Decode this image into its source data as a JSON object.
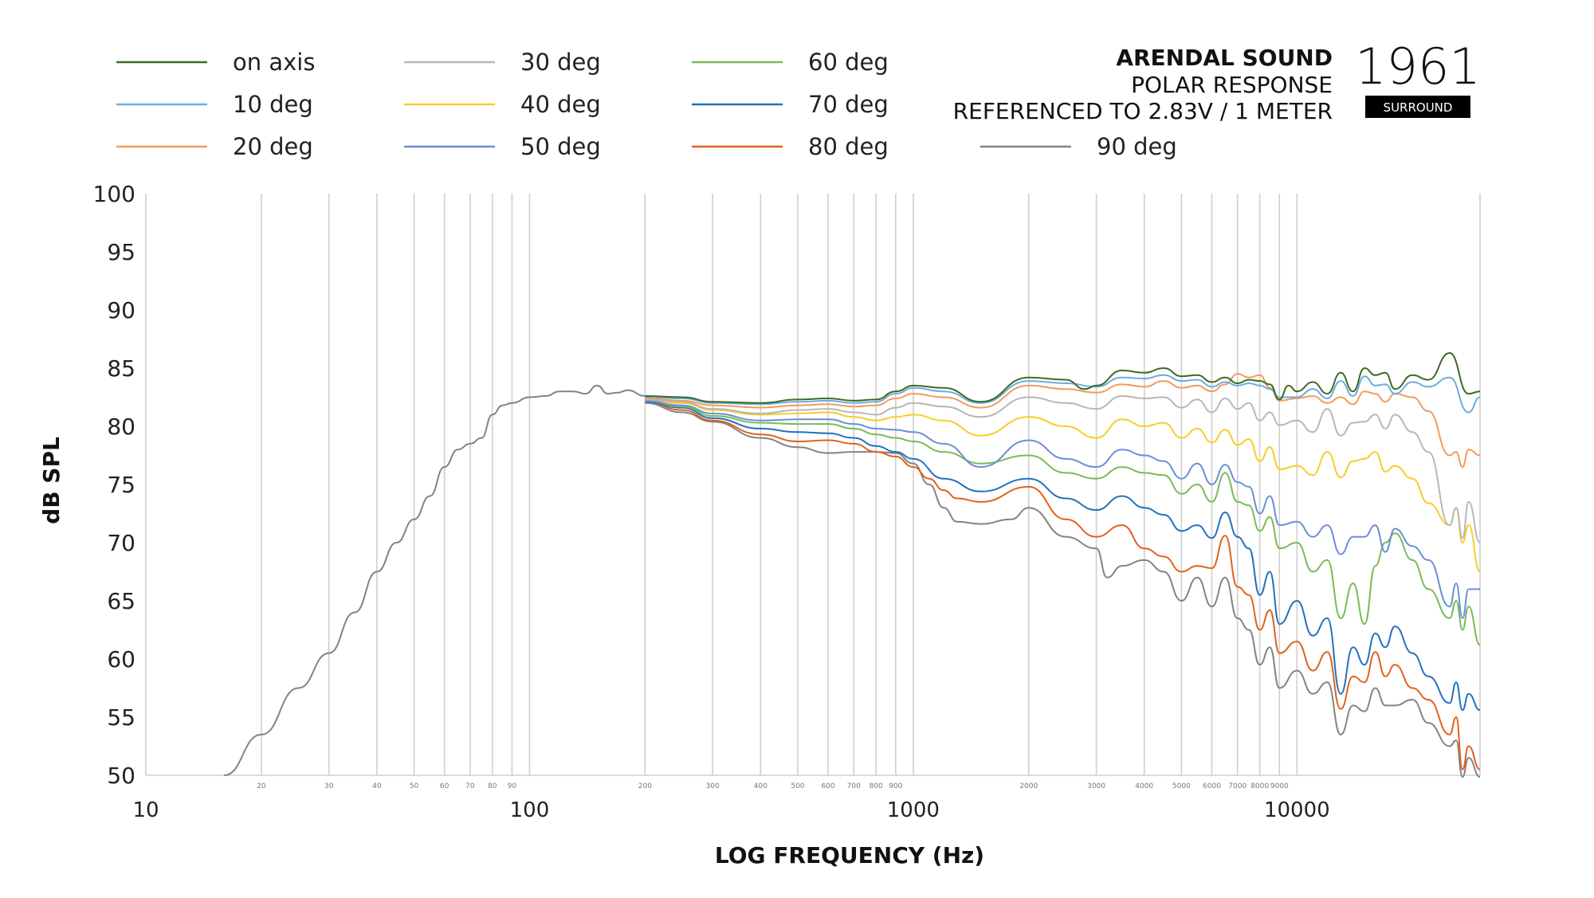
{
  "header": {
    "brand": "ARENDAL SOUND",
    "subtitle": "POLAR RESPONSE",
    "reference": "REFERENCED TO 2.83V / 1 METER",
    "logo_number": "1961",
    "logo_badge": "SURROUND"
  },
  "chart_data": {
    "type": "line",
    "xscale": "log",
    "xlim": [
      10,
      30000
    ],
    "ylim": [
      50,
      100
    ],
    "xlabel": "LOG FREQUENCY (Hz)",
    "ylabel": "dB SPL",
    "grid": "vertical",
    "legend_position": "top",
    "y_ticks": [
      100,
      95,
      90,
      85,
      80,
      75,
      70,
      65,
      60,
      55,
      50
    ],
    "x_major_ticks": [
      {
        "v": 10,
        "label": "10"
      },
      {
        "v": 100,
        "label": "100"
      },
      {
        "v": 1000,
        "label": "1000"
      },
      {
        "v": 10000,
        "label": "10000"
      }
    ],
    "x_minor_ticks": [
      {
        "v": 20,
        "label": "20"
      },
      {
        "v": 30,
        "label": "30"
      },
      {
        "v": 40,
        "label": "40"
      },
      {
        "v": 50,
        "label": "50"
      },
      {
        "v": 60,
        "label": "60"
      },
      {
        "v": 70,
        "label": "70"
      },
      {
        "v": 80,
        "label": "80"
      },
      {
        "v": 90,
        "label": "90"
      },
      {
        "v": 200,
        "label": "200"
      },
      {
        "v": 300,
        "label": "300"
      },
      {
        "v": 400,
        "label": "400"
      },
      {
        "v": 500,
        "label": "500"
      },
      {
        "v": 600,
        "label": "600"
      },
      {
        "v": 700,
        "label": "700"
      },
      {
        "v": 800,
        "label": "800"
      },
      {
        "v": 900,
        "label": "900"
      },
      {
        "v": 2000,
        "label": "2000"
      },
      {
        "v": 3000,
        "label": "3000"
      },
      {
        "v": 4000,
        "label": "4000"
      },
      {
        "v": 5000,
        "label": "5000"
      },
      {
        "v": 6000,
        "label": "6000"
      },
      {
        "v": 7000,
        "label": "7000"
      },
      {
        "v": 8000,
        "label": "8000"
      },
      {
        "v": 9000,
        "label": "9000"
      }
    ],
    "gridline_freqs": [
      10,
      20,
      30,
      40,
      50,
      60,
      70,
      80,
      90,
      100,
      200,
      300,
      400,
      500,
      600,
      700,
      800,
      900,
      1000,
      2000,
      3000,
      4000,
      5000,
      6000,
      7000,
      8000,
      9000,
      10000,
      30000
    ],
    "base_curve": {
      "x": [
        16,
        20,
        25,
        30,
        35,
        40,
        45,
        50,
        55,
        60,
        65,
        70,
        75,
        80,
        85,
        90,
        100,
        110,
        120,
        130,
        140,
        150,
        160,
        170,
        180,
        200
      ],
      "y": [
        50,
        53.5,
        57.5,
        60.5,
        64,
        67.5,
        70,
        72,
        74,
        76.5,
        78,
        78.5,
        79,
        81,
        81.8,
        82,
        82.5,
        82.6,
        83,
        83,
        82.8,
        83.5,
        82.8,
        82.9,
        83.1,
        82.6
      ]
    },
    "series": [
      {
        "name": "on axis",
        "color": "#3e6a22",
        "end_db": 83,
        "x": [
          200,
          250,
          300,
          400,
          500,
          600,
          700,
          800,
          900,
          1000,
          1200,
          1500,
          2000,
          2500,
          2800,
          3000,
          3500,
          4000,
          4500,
          5000,
          5500,
          6000,
          6500,
          7000,
          7500,
          8000,
          8500,
          9000,
          9500,
          10000,
          11000,
          12000,
          13000,
          14000,
          15000,
          16000,
          17000,
          18000,
          20000,
          22000,
          25000,
          28000,
          30000
        ],
        "y": [
          82.6,
          82.5,
          82.1,
          82,
          82.3,
          82.4,
          82.2,
          82.3,
          83,
          83.5,
          83.3,
          82.1,
          84.2,
          84,
          83.2,
          83.5,
          84.8,
          84.6,
          85,
          84.3,
          84.4,
          83.8,
          84.2,
          83.7,
          84,
          83.9,
          83.6,
          82.3,
          83.5,
          83,
          83.8,
          82.8,
          84.6,
          83,
          85,
          84.4,
          84.6,
          83.2,
          84.4,
          84,
          86.3,
          82.8,
          83
        ]
      },
      {
        "name": "10 deg",
        "color": "#6aaee0",
        "end_db": 82.5,
        "x": [
          200,
          250,
          300,
          400,
          500,
          600,
          700,
          800,
          900,
          1000,
          1200,
          1500,
          2000,
          2500,
          3000,
          3500,
          4000,
          4500,
          5000,
          5500,
          6000,
          6500,
          7000,
          7500,
          8000,
          8500,
          9000,
          10000,
          11000,
          12000,
          13000,
          14000,
          15000,
          16000,
          17000,
          18000,
          20000,
          22000,
          25000,
          28000,
          30000
        ],
        "y": [
          82.5,
          82.4,
          82,
          81.9,
          82.1,
          82.2,
          82,
          82.1,
          82.8,
          83.3,
          83,
          82,
          83.9,
          83.7,
          83.4,
          84.2,
          84.1,
          84.4,
          83.9,
          84,
          83.4,
          83.8,
          83.5,
          83.7,
          83.5,
          83.2,
          82.5,
          82.5,
          83.2,
          82.4,
          83.9,
          82.6,
          84.3,
          83.5,
          83.6,
          82.8,
          83.8,
          83.4,
          84.2,
          81.2,
          82.5
        ]
      },
      {
        "name": "20 deg",
        "color": "#f39a5c",
        "end_db": 77.5,
        "x": [
          200,
          250,
          300,
          400,
          500,
          600,
          700,
          800,
          900,
          1000,
          1200,
          1500,
          2000,
          2500,
          3000,
          3500,
          4000,
          4500,
          5000,
          5500,
          6000,
          6500,
          7000,
          7500,
          8000,
          8500,
          9000,
          10000,
          11000,
          12000,
          13000,
          14000,
          15000,
          16000,
          17000,
          18000,
          20000,
          22000,
          25000,
          26000,
          27000,
          28000,
          30000
        ],
        "y": [
          82.4,
          82.2,
          81.8,
          81.6,
          81.8,
          81.9,
          81.7,
          81.8,
          82.4,
          82.8,
          82.5,
          81.6,
          83.5,
          83.2,
          82.9,
          83.6,
          83.4,
          83.9,
          83.3,
          83.5,
          83,
          83.6,
          84.5,
          84.2,
          84.4,
          83.3,
          82.2,
          82.4,
          82.6,
          82,
          82.5,
          81.9,
          83,
          82.8,
          82.1,
          82.8,
          82.5,
          81.3,
          77.5,
          77.8,
          76.5,
          78,
          77.5
        ]
      },
      {
        "name": "30 deg",
        "color": "#b7b7b7",
        "end_db": 70,
        "x": [
          200,
          250,
          300,
          400,
          500,
          600,
          700,
          800,
          900,
          1000,
          1200,
          1500,
          2000,
          2500,
          3000,
          3500,
          4000,
          4500,
          5000,
          5500,
          6000,
          6500,
          7000,
          7500,
          8000,
          8500,
          9000,
          10000,
          11000,
          12000,
          13000,
          14000,
          15000,
          16000,
          17000,
          18000,
          20000,
          22000,
          25000,
          26000,
          27000,
          28000,
          30000
        ],
        "y": [
          82.3,
          82.1,
          81.5,
          81.1,
          81.4,
          81.5,
          81.2,
          81,
          81.6,
          82,
          81.7,
          80.8,
          82.5,
          82,
          81.5,
          82.6,
          82.4,
          82.5,
          81.6,
          82.3,
          81.2,
          82.4,
          81.5,
          82,
          80.5,
          81.2,
          80.1,
          80.5,
          79.5,
          81.5,
          79.2,
          80.3,
          80.4,
          81,
          79.8,
          81,
          79.5,
          77.8,
          71.5,
          73,
          70.4,
          73.5,
          70
        ]
      },
      {
        "name": "40 deg",
        "color": "#f8cd26",
        "end_db": 67.5,
        "x": [
          200,
          250,
          300,
          400,
          500,
          600,
          700,
          800,
          900,
          1000,
          1200,
          1500,
          2000,
          2500,
          3000,
          3500,
          4000,
          4500,
          5000,
          5500,
          6000,
          6500,
          7000,
          7500,
          8000,
          8500,
          9000,
          10000,
          11000,
          12000,
          13000,
          14000,
          15000,
          16000,
          17000,
          18000,
          20000,
          22000,
          25000,
          26000,
          27000,
          28000,
          30000
        ],
        "y": [
          82.3,
          82,
          81.4,
          81,
          81.1,
          81.2,
          80.8,
          80.5,
          80.8,
          81,
          80.5,
          79.2,
          80.8,
          80,
          79,
          80.6,
          80,
          80.3,
          79,
          79.8,
          78.6,
          79.7,
          78.4,
          78.9,
          77,
          78.2,
          76.3,
          76.6,
          75.8,
          77.8,
          75.6,
          77,
          77.2,
          77.8,
          76.1,
          76.6,
          75.5,
          73.4,
          71.5,
          73,
          70,
          71.5,
          67.5
        ]
      },
      {
        "name": "50 deg",
        "color": "#6b8fd6",
        "end_db": 66,
        "x": [
          200,
          250,
          300,
          400,
          500,
          600,
          700,
          800,
          900,
          1000,
          1200,
          1500,
          2000,
          2500,
          3000,
          3500,
          4000,
          4500,
          5000,
          5500,
          6000,
          6500,
          7000,
          7500,
          8000,
          8500,
          9000,
          10000,
          11000,
          12000,
          13000,
          14000,
          15000,
          16000,
          17000,
          18000,
          20000,
          22000,
          25000,
          26000,
          27000,
          28000,
          30000
        ],
        "y": [
          82.2,
          81.8,
          81.1,
          80.5,
          80.6,
          80.6,
          80.2,
          79.8,
          79.7,
          79.5,
          78.5,
          76.5,
          78.8,
          77.2,
          76.5,
          78,
          77.5,
          77,
          75.5,
          76.8,
          75,
          76.7,
          75.2,
          74.8,
          72.5,
          74,
          71.5,
          71.8,
          70.5,
          71.5,
          69,
          70.5,
          70.5,
          71.5,
          69.2,
          71.2,
          69.7,
          68.5,
          64.5,
          66.5,
          63.5,
          66,
          66
        ]
      },
      {
        "name": "60 deg",
        "color": "#79bb56",
        "end_db": 61.2,
        "x": [
          200,
          250,
          300,
          400,
          500,
          600,
          700,
          800,
          900,
          1000,
          1200,
          1500,
          2000,
          2500,
          3000,
          3500,
          4000,
          4500,
          5000,
          5500,
          6000,
          6500,
          7000,
          7500,
          8000,
          8500,
          9000,
          10000,
          11000,
          12000,
          13000,
          14000,
          15000,
          16000,
          17000,
          18000,
          20000,
          22000,
          25000,
          26000,
          27000,
          28000,
          30000
        ],
        "y": [
          82.2,
          81.7,
          80.9,
          80.3,
          80.2,
          80.2,
          79.8,
          79.3,
          79,
          78.7,
          77.8,
          76.8,
          77.5,
          76,
          75.5,
          76.5,
          76,
          75.8,
          74.2,
          75,
          73.5,
          76,
          73.5,
          73.2,
          71,
          72.2,
          69.5,
          70,
          67.5,
          68.5,
          63.5,
          66.5,
          63,
          68,
          70,
          70.8,
          68.5,
          66,
          63.5,
          65,
          62.5,
          64.5,
          61.2
        ]
      },
      {
        "name": "70 deg",
        "color": "#2371be",
        "end_db": 55.6,
        "x": [
          200,
          250,
          300,
          400,
          500,
          600,
          700,
          800,
          900,
          1000,
          1200,
          1500,
          2000,
          2500,
          3000,
          3500,
          4000,
          4500,
          5000,
          5500,
          6000,
          6500,
          7000,
          7500,
          8000,
          8500,
          9000,
          10000,
          11000,
          12000,
          13000,
          14000,
          15000,
          16000,
          17000,
          18000,
          20000,
          22000,
          25000,
          26000,
          27000,
          28000,
          30000
        ],
        "y": [
          82.1,
          81.6,
          80.7,
          79.8,
          79.5,
          79.4,
          79,
          78.3,
          77.8,
          77.2,
          75.5,
          74.4,
          75.5,
          73.8,
          72.8,
          74,
          73,
          72.4,
          71,
          71.5,
          70.4,
          72.6,
          70.5,
          69.5,
          65.5,
          67.5,
          63,
          65,
          62,
          63.5,
          57,
          61,
          59.5,
          62.2,
          61,
          62.8,
          60.5,
          58.5,
          56.2,
          58,
          55.6,
          57,
          55.6
        ]
      },
      {
        "name": "80 deg",
        "color": "#e0621b",
        "end_db": 50.5,
        "x": [
          200,
          250,
          300,
          400,
          500,
          600,
          700,
          800,
          900,
          1000,
          1100,
          1200,
          1300,
          1500,
          2000,
          2500,
          3000,
          3500,
          4000,
          4500,
          5000,
          5500,
          6000,
          6500,
          7000,
          7500,
          8000,
          8500,
          9000,
          10000,
          11000,
          12000,
          13000,
          14000,
          15000,
          16000,
          17000,
          18000,
          20000,
          22000,
          25000,
          26000,
          27000,
          28000,
          30000
        ],
        "y": [
          82.1,
          81.4,
          80.5,
          79.3,
          78.7,
          78.8,
          78.5,
          77.8,
          77.4,
          76.5,
          75.5,
          74.5,
          73.8,
          73.5,
          74.8,
          72,
          70.5,
          71.5,
          69.5,
          68.8,
          67.5,
          68,
          67.8,
          70.6,
          66.2,
          65.5,
          62.5,
          64.2,
          60.5,
          61.5,
          59,
          60.6,
          55.7,
          58.5,
          58,
          60.6,
          58.5,
          59.5,
          57.5,
          56.5,
          53.5,
          55,
          50.5,
          52.5,
          50.5
        ]
      },
      {
        "name": "90 deg",
        "color": "#838383",
        "end_db": 49.5,
        "x": [
          200,
          250,
          300,
          400,
          500,
          600,
          700,
          800,
          900,
          1000,
          1100,
          1200,
          1300,
          1500,
          1800,
          2000,
          2500,
          3000,
          3200,
          3500,
          4000,
          4500,
          5000,
          5500,
          6000,
          6500,
          7000,
          7500,
          8000,
          8500,
          9000,
          10000,
          11000,
          12000,
          13000,
          14000,
          15000,
          16000,
          17000,
          18000,
          20000,
          22000,
          25000,
          26000,
          27000,
          28000,
          30000
        ],
        "y": [
          82,
          81.2,
          80.4,
          79,
          78.2,
          77.7,
          77.8,
          77.8,
          77.7,
          76.8,
          75,
          73,
          71.8,
          71.6,
          72,
          73,
          70.5,
          69.5,
          67,
          68,
          68.5,
          67.5,
          65,
          67,
          64.5,
          67,
          63.5,
          62.5,
          59.5,
          61,
          57.5,
          59,
          57,
          58,
          53.5,
          56,
          55.5,
          57.5,
          56,
          56,
          56.5,
          54.5,
          52.5,
          53,
          49.5,
          51.5,
          49.5
        ]
      }
    ]
  }
}
